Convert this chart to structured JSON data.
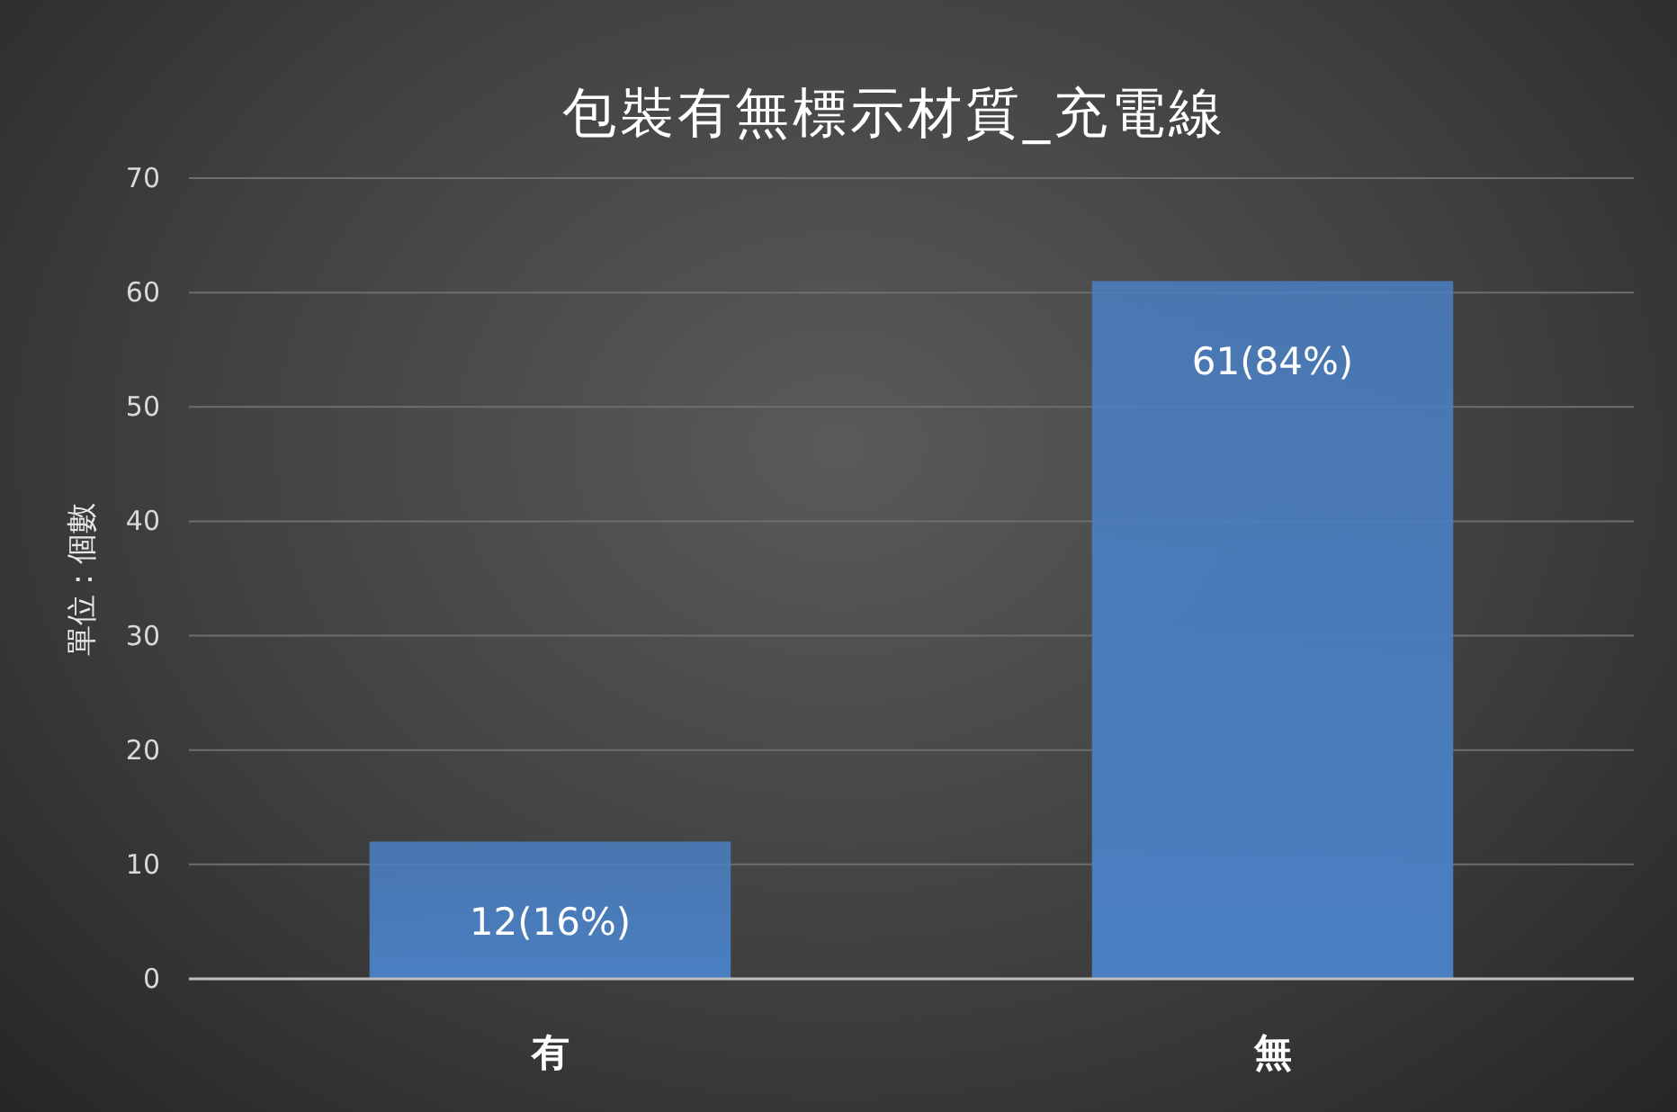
{
  "chart_data": {
    "type": "bar",
    "title": "包裝有無標示材質_充電線",
    "ylabel": "單位：個數",
    "categories": [
      "有",
      "無"
    ],
    "values": [
      12,
      61
    ],
    "value_labels": [
      "12(16%)",
      "61(84%)"
    ],
    "color": "#4a7fc2",
    "ylim": [
      0,
      70
    ],
    "yticks": [
      0,
      10,
      20,
      30,
      40,
      50,
      60,
      70
    ],
    "grid": "y"
  }
}
